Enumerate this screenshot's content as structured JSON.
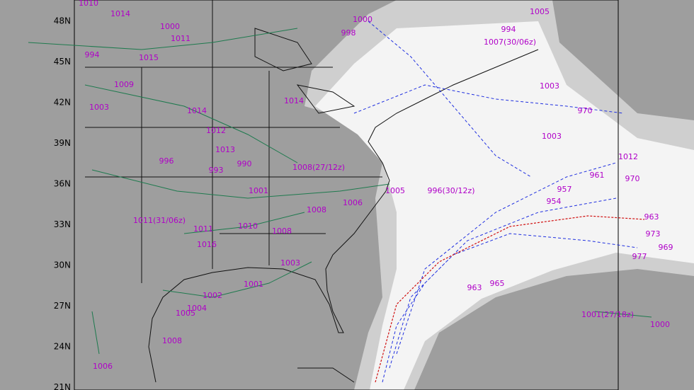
{
  "map": {
    "lat_labels": [
      "48N",
      "45N",
      "42N",
      "39N",
      "36N",
      "33N",
      "30N",
      "27N",
      "24N",
      "21N"
    ],
    "storm_labels": [
      "1010",
      "1014",
      "1000",
      "1011",
      "994",
      "1015",
      "1009",
      "1003",
      "1014",
      "1012",
      "1013",
      "996",
      "993",
      "990",
      "1001",
      "1008(27/12z)",
      "1006",
      "1008",
      "1008",
      "1010",
      "1011",
      "1016",
      "1003",
      "1001",
      "1002",
      "1004",
      "1005",
      "1008",
      "1006",
      "1000",
      "998",
      "994",
      "1005",
      "1003",
      "970",
      "1003",
      "1012",
      "970",
      "961",
      "957",
      "954",
      "963",
      "973",
      "969",
      "977",
      "1001(27/18z)",
      "1000",
      "996(30/12z)",
      "965",
      "963",
      "1005",
      "1014",
      "1011(31/06z)",
      "1007(30/06z)"
    ]
  }
}
